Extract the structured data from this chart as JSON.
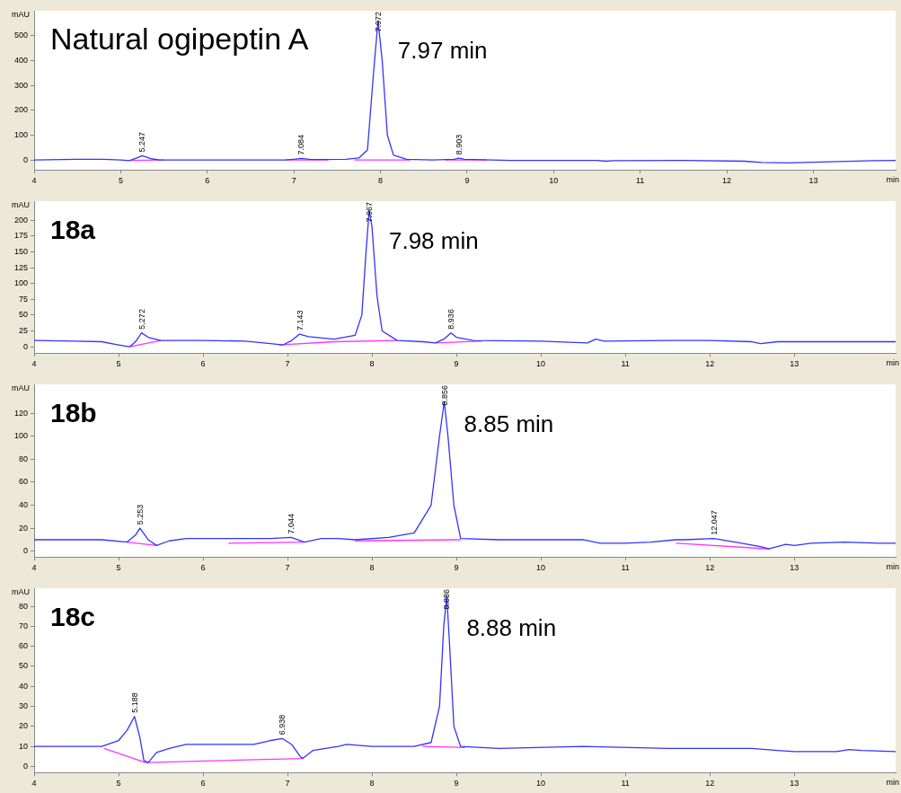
{
  "chart_data": [
    {
      "type": "line",
      "title": "Natural ogipeptin A",
      "xlabel": "min",
      "ylabel": "mAU",
      "xlim": [
        4,
        13.95
      ],
      "xticks": [
        4,
        5,
        6,
        7,
        8,
        9,
        10,
        11,
        12,
        13
      ],
      "ylim": [
        -40,
        600
      ],
      "yticks": [
        0,
        100,
        200,
        300,
        400,
        500
      ],
      "series": [
        {
          "color": "#3333ff",
          "x": [
            4,
            4.5,
            4.8,
            5.0,
            5.1,
            5.2,
            5.247,
            5.35,
            5.45,
            6.9,
            7.0,
            7.084,
            7.2,
            7.6,
            7.75,
            7.85,
            7.92,
            7.972,
            8.02,
            8.08,
            8.15,
            8.3,
            8.6,
            8.85,
            8.903,
            8.97,
            9.5,
            10.5,
            10.6,
            10.7,
            11.5,
            12.2,
            12.4,
            12.7,
            12.9,
            13.7,
            13.95
          ],
          "values": [
            0,
            3,
            3,
            0,
            -3,
            10,
            17,
            5,
            0,
            0,
            3,
            6,
            2,
            3,
            8,
            40,
            350,
            560,
            400,
            100,
            20,
            3,
            0,
            3,
            7,
            3,
            -2,
            -2,
            -5,
            -3,
            -2,
            -5,
            -10,
            -12,
            -10,
            -3,
            -2
          ]
        },
        {
          "color": "#ff33ff",
          "x": [
            5.1,
            5.5,
            5.6,
            6.9,
            7.4,
            7.5,
            7.7,
            8.35,
            8.5,
            8.75,
            9.23
          ],
          "values": [
            -2,
            0,
            null,
            0,
            0,
            null,
            0,
            0,
            null,
            0,
            0
          ]
        }
      ],
      "annotations": [
        "7.97 min",
        {
          "text": "5.247",
          "x": 5.247,
          "y": 17
        },
        {
          "text": "7.084",
          "x": 7.084,
          "y": 6
        },
        {
          "text": "7.972",
          "x": 7.972,
          "y": 560
        },
        {
          "text": "8.903",
          "x": 8.903,
          "y": 7
        }
      ]
    },
    {
      "type": "line",
      "title": "18a",
      "xlabel": "min",
      "ylabel": "mAU",
      "xlim": [
        4,
        14.2
      ],
      "xticks": [
        4,
        5,
        6,
        7,
        8,
        9,
        10,
        11,
        12,
        13
      ],
      "ylim": [
        -10,
        230
      ],
      "yticks": [
        0,
        25,
        50,
        75,
        100,
        125,
        150,
        175,
        200
      ],
      "series": [
        {
          "color": "#3333ff",
          "x": [
            4,
            4.5,
            4.8,
            5.0,
            5.13,
            5.2,
            5.272,
            5.35,
            5.5,
            6.0,
            6.5,
            6.8,
            6.95,
            7.05,
            7.143,
            7.25,
            7.55,
            7.8,
            7.88,
            7.93,
            7.967,
            8.0,
            8.06,
            8.12,
            8.3,
            8.6,
            8.75,
            8.85,
            8.936,
            9.0,
            9.2,
            10.0,
            10.55,
            10.65,
            10.75,
            11.5,
            12.0,
            12.5,
            12.6,
            12.8,
            13.2,
            14.2
          ],
          "values": [
            10,
            9,
            8,
            3,
            0,
            8,
            22,
            15,
            10,
            10,
            9,
            5,
            3,
            10,
            20,
            16,
            12,
            18,
            50,
            150,
            215,
            190,
            80,
            25,
            10,
            8,
            6,
            12,
            22,
            15,
            10,
            9,
            6,
            12,
            9,
            10,
            10,
            8,
            5,
            8,
            8,
            8
          ]
        },
        {
          "color": "#ff33ff",
          "x": [
            5.13,
            5.5,
            5.7,
            6.9,
            7.55,
            8.3,
            8.5,
            8.75,
            9.3
          ],
          "values": [
            0,
            10,
            null,
            3,
            8,
            10,
            null,
            6,
            9
          ]
        }
      ],
      "annotations": [
        "7.98 min",
        {
          "text": "5.272",
          "x": 5.272,
          "y": 22
        },
        {
          "text": "7.143",
          "x": 7.143,
          "y": 20
        },
        {
          "text": "7.967",
          "x": 7.967,
          "y": 215
        },
        {
          "text": "8.936",
          "x": 8.936,
          "y": 22
        }
      ]
    },
    {
      "type": "line",
      "title": "18b",
      "xlabel": "min",
      "ylabel": "mAU",
      "xlim": [
        4,
        14.2
      ],
      "xticks": [
        4,
        5,
        6,
        7,
        8,
        9,
        10,
        11,
        12,
        13
      ],
      "ylim": [
        -5,
        145
      ],
      "yticks": [
        0,
        20,
        40,
        60,
        80,
        100,
        120
      ],
      "series": [
        {
          "color": "#3333ff",
          "x": [
            4,
            4.8,
            5.1,
            5.2,
            5.253,
            5.35,
            5.45,
            5.6,
            5.8,
            6.3,
            6.8,
            7.044,
            7.2,
            7.4,
            7.6,
            7.8,
            8.2,
            8.5,
            8.7,
            8.8,
            8.856,
            8.9,
            8.97,
            9.05,
            9.5,
            10.5,
            10.7,
            11.0,
            11.3,
            11.6,
            11.7,
            12.047,
            12.3,
            12.6,
            12.7,
            12.85,
            12.9,
            13.0,
            13.2,
            13.6,
            14.0,
            14.2
          ],
          "values": [
            10,
            10,
            8,
            14,
            20,
            10,
            5,
            9,
            11,
            11,
            11,
            12,
            8,
            11,
            11,
            10,
            12,
            16,
            40,
            100,
            130,
            100,
            40,
            11,
            10,
            10,
            7,
            7,
            8,
            10,
            10,
            11,
            8,
            4,
            2,
            5,
            6,
            5,
            7,
            8,
            7,
            7
          ]
        },
        {
          "color": "#ff33ff",
          "x": [
            5.1,
            5.45,
            5.8,
            6.3,
            7.2,
            7.5,
            7.8,
            9.05,
            10,
            11.6,
            12.7
          ],
          "values": [
            8,
            5,
            null,
            7,
            8,
            null,
            9,
            10,
            null,
            7,
            2
          ]
        }
      ],
      "annotations": [
        "8.85 min",
        {
          "text": "5.253",
          "x": 5.253,
          "y": 20
        },
        {
          "text": "7.044",
          "x": 7.044,
          "y": 12
        },
        {
          "text": "8.856",
          "x": 8.856,
          "y": 130
        },
        {
          "text": "12.047",
          "x": 12.047,
          "y": 11
        }
      ]
    },
    {
      "type": "line",
      "title": "18c",
      "xlabel": "min",
      "ylabel": "mAU",
      "xlim": [
        4,
        14.2
      ],
      "xticks": [
        4,
        5,
        6,
        7,
        8,
        9,
        10,
        11,
        12,
        13
      ],
      "ylim": [
        -3,
        89
      ],
      "yticks": [
        0,
        10,
        20,
        30,
        40,
        50,
        60,
        70,
        80
      ],
      "series": [
        {
          "color": "#3333ff",
          "x": [
            4,
            4.5,
            4.8,
            5.0,
            5.1,
            5.188,
            5.25,
            5.3,
            5.35,
            5.45,
            5.6,
            5.8,
            6.2,
            6.6,
            6.8,
            6.938,
            7.05,
            7.15,
            7.18,
            7.3,
            7.6,
            7.7,
            8.0,
            8.5,
            8.7,
            8.8,
            8.85,
            8.886,
            8.92,
            8.97,
            9.05,
            9.5,
            10.5,
            11.5,
            12.0,
            12.5,
            12.8,
            13.0,
            13.5,
            13.65,
            13.8,
            14.2
          ],
          "values": [
            10,
            10,
            10,
            13,
            18,
            25,
            15,
            3,
            2,
            7,
            9,
            11,
            11,
            11,
            13,
            14,
            11,
            5,
            4,
            8,
            10,
            11,
            10,
            10,
            12,
            30,
            70,
            85,
            60,
            20,
            10,
            9,
            10,
            9,
            9,
            9,
            8,
            7.5,
            7.5,
            8.5,
            8,
            7.5
          ]
        },
        {
          "color": "#ff33ff",
          "x": [
            4.83,
            5.32,
            7.18,
            8.0,
            8.6,
            9.1
          ],
          "values": [
            9,
            2,
            4,
            null,
            10,
            9.5
          ]
        }
      ],
      "annotations": [
        "8.88 min",
        {
          "text": "5.188",
          "x": 5.188,
          "y": 25
        },
        {
          "text": "6.938",
          "x": 6.938,
          "y": 14
        },
        {
          "text": "8.886",
          "x": 8.886,
          "y": 85
        }
      ]
    }
  ]
}
